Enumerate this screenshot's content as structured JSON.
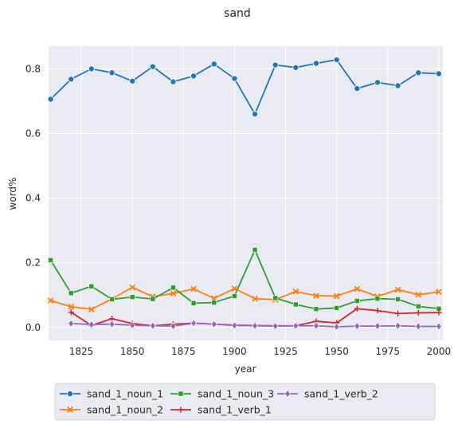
{
  "chart_data": {
    "type": "line",
    "title": "sand",
    "xlabel": "year",
    "ylabel": "word%",
    "xlim": [
      1809,
      2002
    ],
    "ylim": [
      -0.04,
      0.87
    ],
    "xticks": [
      1825,
      1850,
      1875,
      1900,
      1925,
      1950,
      1975,
      2000
    ],
    "yticks": [
      0.0,
      0.2,
      0.4,
      0.6,
      0.8
    ],
    "grid": true,
    "legend_position": "bottom-center",
    "series": [
      {
        "name": "sand_1_noun_1",
        "color": "#1f77b4",
        "marker": "circle",
        "x": [
          1810,
          1820,
          1830,
          1840,
          1850,
          1860,
          1870,
          1880,
          1890,
          1900,
          1910,
          1920,
          1930,
          1940,
          1950,
          1960,
          1970,
          1980,
          1990,
          2000
        ],
        "values": [
          0.706,
          0.768,
          0.8,
          0.788,
          0.762,
          0.807,
          0.76,
          0.778,
          0.815,
          0.77,
          0.66,
          0.812,
          0.804,
          0.817,
          0.828,
          0.739,
          0.758,
          0.748,
          0.788,
          0.785
        ]
      },
      {
        "name": "sand_1_noun_2",
        "color": "#ff7f0e",
        "marker": "x",
        "x": [
          1810,
          1820,
          1830,
          1840,
          1850,
          1860,
          1870,
          1880,
          1890,
          1900,
          1910,
          1920,
          1930,
          1940,
          1950,
          1960,
          1970,
          1980,
          1990,
          2000
        ],
        "values": [
          0.083,
          0.064,
          0.056,
          0.088,
          0.124,
          0.095,
          0.105,
          0.119,
          0.09,
          0.12,
          0.089,
          0.086,
          0.111,
          0.098,
          0.097,
          0.119,
          0.096,
          0.117,
          0.101,
          0.11
        ]
      },
      {
        "name": "sand_1_noun_3",
        "color": "#2ca02c",
        "marker": "square",
        "x": [
          1810,
          1820,
          1830,
          1840,
          1850,
          1860,
          1870,
          1880,
          1890,
          1900,
          1910,
          1920,
          1930,
          1940,
          1950,
          1960,
          1970,
          1980,
          1990,
          2000
        ],
        "values": [
          0.208,
          0.106,
          0.127,
          0.087,
          0.094,
          0.088,
          0.123,
          0.075,
          0.077,
          0.097,
          0.24,
          0.091,
          0.071,
          0.057,
          0.06,
          0.082,
          0.089,
          0.087,
          0.065,
          0.058
        ]
      },
      {
        "name": "sand_1_verb_1",
        "color": "#d62728",
        "marker": "plus",
        "x": [
          1820,
          1830,
          1840,
          1850,
          1860,
          1870,
          1880,
          1890,
          1900,
          1910,
          1920,
          1930,
          1940,
          1950,
          1960,
          1970,
          1980,
          1990,
          2000
        ],
        "values": [
          0.047,
          0.006,
          0.027,
          0.012,
          0.005,
          0.01,
          0.013,
          0.01,
          0.007,
          0.006,
          0.005,
          0.005,
          0.019,
          0.014,
          0.058,
          0.052,
          0.043,
          0.045,
          0.046
        ]
      },
      {
        "name": "sand_1_verb_2",
        "color": "#9467bd",
        "marker": "diamond",
        "x": [
          1820,
          1830,
          1840,
          1850,
          1860,
          1870,
          1880,
          1890,
          1900,
          1910,
          1920,
          1930,
          1940,
          1950,
          1960,
          1970,
          1980,
          1990,
          2000
        ],
        "values": [
          0.012,
          0.009,
          0.01,
          0.007,
          0.005,
          0.004,
          0.013,
          0.01,
          0.006,
          0.005,
          0.004,
          0.005,
          0.005,
          0.002,
          0.004,
          0.004,
          0.005,
          0.003,
          0.003
        ]
      }
    ]
  }
}
